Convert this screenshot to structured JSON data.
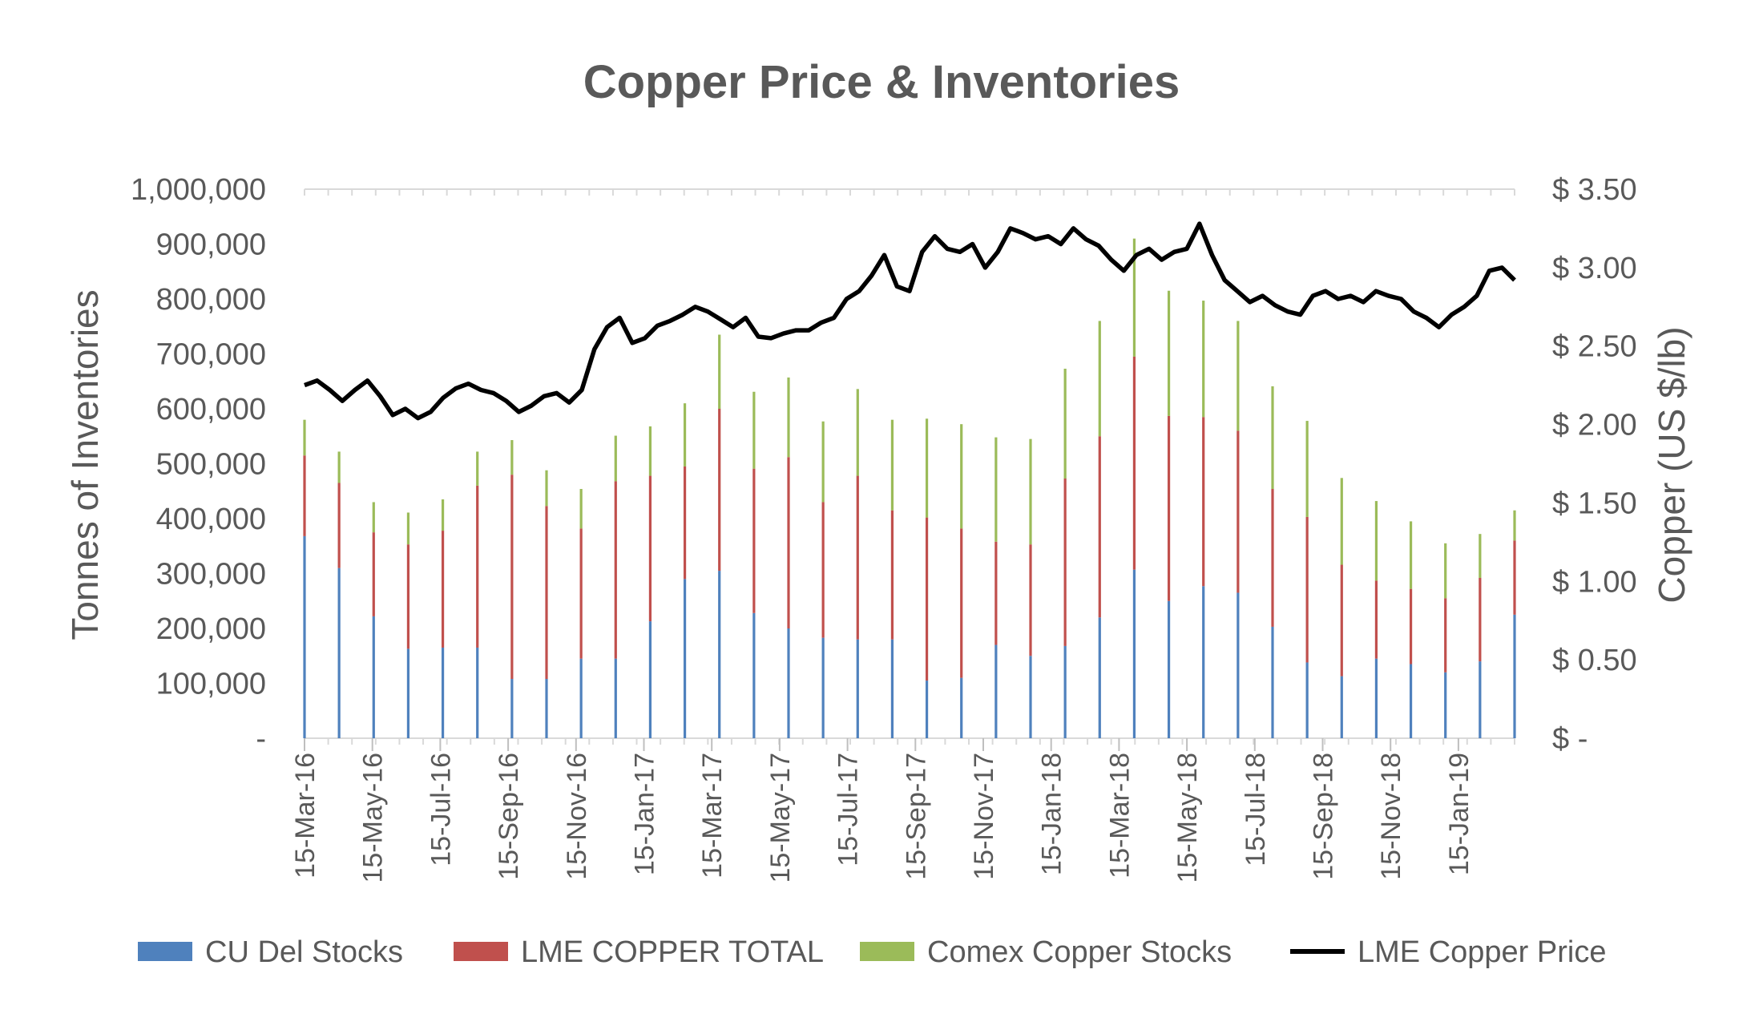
{
  "chart_data": {
    "type": "bar",
    "title": "Copper Price & Inventories",
    "ylabel_left": "Tonnes of Inventories",
    "ylabel_right": "Copper (US $/lb)",
    "ylim_left": [
      0,
      1000000
    ],
    "ylim_right": [
      0,
      3.5
    ],
    "y_ticks_left": [
      "-",
      "100,000",
      "200,000",
      "300,000",
      "400,000",
      "500,000",
      "600,000",
      "700,000",
      "800,000",
      "900,000",
      "1,000,000"
    ],
    "y_ticks_right": [
      "$ -",
      "$ 0.50",
      "$ 1.00",
      "$ 1.50",
      "$ 2.00",
      "$ 2.50",
      "$ 3.00",
      "$ 3.50"
    ],
    "x_ticks": [
      "15-Mar-16",
      "15-May-16",
      "15-Jul-16",
      "15-Sep-16",
      "15-Nov-16",
      "15-Jan-17",
      "15-Mar-17",
      "15-May-17",
      "15-Jul-17",
      "15-Sep-17",
      "15-Nov-17",
      "15-Jan-18",
      "15-Mar-18",
      "15-May-18",
      "15-Jul-18",
      "15-Sep-18",
      "15-Nov-18",
      "15-Jan-19"
    ],
    "legend_position": "bottom",
    "grid": false,
    "stack_series": [
      {
        "name": "CU Del Stocks",
        "color": "#4f81bd",
        "values": [
          368000,
          310000,
          222000,
          163000,
          165000,
          165000,
          108000,
          108000,
          145000,
          145000,
          213000,
          290000,
          305000,
          228000,
          200000,
          183000,
          180000,
          180000,
          105000,
          110000,
          170000,
          150000,
          168000,
          220000,
          307000,
          250000,
          277000,
          265000,
          203000,
          138000,
          113000,
          145000,
          135000,
          120000,
          140000,
          225000
        ]
      },
      {
        "name": "LME COPPER TOTAL",
        "color": "#c0504d",
        "values": [
          147000,
          155000,
          153000,
          190000,
          213000,
          295000,
          372000,
          315000,
          237000,
          323000,
          265000,
          205000,
          295000,
          263000,
          312000,
          247000,
          298000,
          235000,
          297000,
          272000,
          188000,
          203000,
          305000,
          330000,
          388000,
          337000,
          308000,
          295000,
          251000,
          265000,
          203000,
          142000,
          137000,
          135000,
          152000,
          135000
        ]
      },
      {
        "name": "Comex Copper Stocks",
        "color": "#9bbb59",
        "values": [
          65000,
          57000,
          55000,
          58000,
          57000,
          62000,
          63000,
          65000,
          72000,
          83000,
          90000,
          115000,
          135000,
          140000,
          145000,
          147000,
          158000,
          165000,
          180000,
          190000,
          190000,
          192000,
          200000,
          210000,
          215000,
          228000,
          212000,
          200000,
          187000,
          175000,
          158000,
          145000,
          123000,
          100000,
          80000,
          55000
        ]
      },
      {
        "name": "LME Copper Price",
        "color": "#000000"
      }
    ],
    "price_series": {
      "name": "LME Copper Price",
      "color": "#000000",
      "points": [
        [
          0,
          2.25
        ],
        [
          2,
          2.28
        ],
        [
          4,
          2.22
        ],
        [
          6,
          2.15
        ],
        [
          8,
          2.22
        ],
        [
          10,
          2.28
        ],
        [
          12,
          2.18
        ],
        [
          14,
          2.06
        ],
        [
          16,
          2.1
        ],
        [
          18,
          2.04
        ],
        [
          20,
          2.08
        ],
        [
          22,
          2.17
        ],
        [
          24,
          2.23
        ],
        [
          26,
          2.26
        ],
        [
          28,
          2.22
        ],
        [
          30,
          2.2
        ],
        [
          32,
          2.15
        ],
        [
          34,
          2.08
        ],
        [
          36,
          2.12
        ],
        [
          38,
          2.18
        ],
        [
          40,
          2.2
        ],
        [
          42,
          2.14
        ],
        [
          44,
          2.22
        ],
        [
          46,
          2.48
        ],
        [
          48,
          2.62
        ],
        [
          50,
          2.68
        ],
        [
          52,
          2.52
        ],
        [
          54,
          2.55
        ],
        [
          56,
          2.63
        ],
        [
          58,
          2.66
        ],
        [
          60,
          2.7
        ],
        [
          62,
          2.75
        ],
        [
          64,
          2.72
        ],
        [
          66,
          2.67
        ],
        [
          68,
          2.62
        ],
        [
          70,
          2.68
        ],
        [
          72,
          2.56
        ],
        [
          74,
          2.55
        ],
        [
          76,
          2.58
        ],
        [
          78,
          2.6
        ],
        [
          80,
          2.6
        ],
        [
          82,
          2.65
        ],
        [
          84,
          2.68
        ],
        [
          86,
          2.8
        ],
        [
          88,
          2.85
        ],
        [
          90,
          2.95
        ],
        [
          92,
          3.08
        ],
        [
          94,
          2.88
        ],
        [
          96,
          2.85
        ],
        [
          98,
          3.1
        ],
        [
          100,
          3.2
        ],
        [
          102,
          3.12
        ],
        [
          104,
          3.1
        ],
        [
          106,
          3.15
        ],
        [
          108,
          3.0
        ],
        [
          110,
          3.1
        ],
        [
          112,
          3.25
        ],
        [
          114,
          3.22
        ],
        [
          116,
          3.18
        ],
        [
          118,
          3.2
        ],
        [
          120,
          3.15
        ],
        [
          122,
          3.25
        ],
        [
          124,
          3.18
        ],
        [
          126,
          3.14
        ],
        [
          128,
          3.05
        ],
        [
          130,
          2.98
        ],
        [
          132,
          3.08
        ],
        [
          134,
          3.12
        ],
        [
          136,
          3.05
        ],
        [
          138,
          3.1
        ],
        [
          140,
          3.12
        ],
        [
          142,
          3.28
        ],
        [
          144,
          3.08
        ],
        [
          146,
          2.92
        ],
        [
          148,
          2.85
        ],
        [
          150,
          2.78
        ],
        [
          152,
          2.82
        ],
        [
          154,
          2.76
        ],
        [
          156,
          2.72
        ],
        [
          158,
          2.7
        ],
        [
          160,
          2.82
        ],
        [
          162,
          2.85
        ],
        [
          164,
          2.8
        ],
        [
          166,
          2.82
        ],
        [
          168,
          2.78
        ],
        [
          170,
          2.85
        ],
        [
          172,
          2.82
        ],
        [
          174,
          2.8
        ],
        [
          176,
          2.72
        ],
        [
          178,
          2.68
        ],
        [
          180,
          2.62
        ],
        [
          182,
          2.7
        ],
        [
          184,
          2.75
        ],
        [
          186,
          2.82
        ],
        [
          188,
          2.98
        ],
        [
          190,
          3.0
        ],
        [
          192,
          2.92
        ]
      ]
    }
  }
}
